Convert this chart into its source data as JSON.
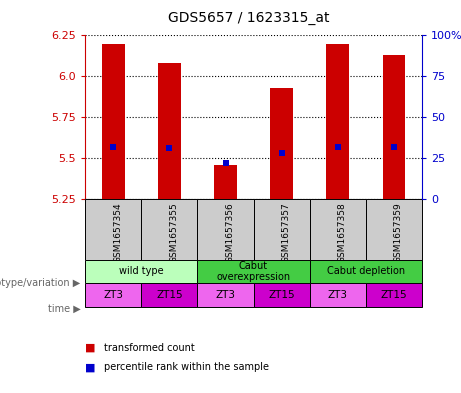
{
  "title": "GDS5657 / 1623315_at",
  "samples": [
    "GSM1657354",
    "GSM1657355",
    "GSM1657356",
    "GSM1657357",
    "GSM1657358",
    "GSM1657359"
  ],
  "bar_values": [
    6.2,
    6.08,
    5.46,
    5.93,
    6.2,
    6.13
  ],
  "bar_base": 5.25,
  "blue_values": [
    5.57,
    5.56,
    5.47,
    5.53,
    5.57,
    5.57
  ],
  "ylim": [
    5.25,
    6.25
  ],
  "yticks_left": [
    5.25,
    5.5,
    5.75,
    6.0,
    6.25
  ],
  "yticks_right": [
    0,
    25,
    50,
    75,
    100
  ],
  "right_ylim": [
    0,
    100
  ],
  "bar_color": "#cc0000",
  "blue_color": "#0000cc",
  "bg_color": "#ffffff",
  "geno_labels": [
    "wild type",
    "Cabut\noverexpression",
    "Cabut depletion"
  ],
  "geno_ranges": [
    [
      0,
      2
    ],
    [
      2,
      4
    ],
    [
      4,
      6
    ]
  ],
  "geno_colors": [
    "#bbffbb",
    "#44cc44",
    "#44cc44"
  ],
  "time_labels": [
    "ZT3",
    "ZT15",
    "ZT3",
    "ZT15",
    "ZT3",
    "ZT15"
  ],
  "time_colors": [
    "#ee66ee",
    "#cc00cc",
    "#ee66ee",
    "#cc00cc",
    "#ee66ee",
    "#cc00cc"
  ],
  "sample_bg_color": "#cccccc",
  "legend_red_label": "transformed count",
  "legend_blue_label": "percentile rank within the sample",
  "left_label_geno": "genotype/variation",
  "left_label_time": "time"
}
